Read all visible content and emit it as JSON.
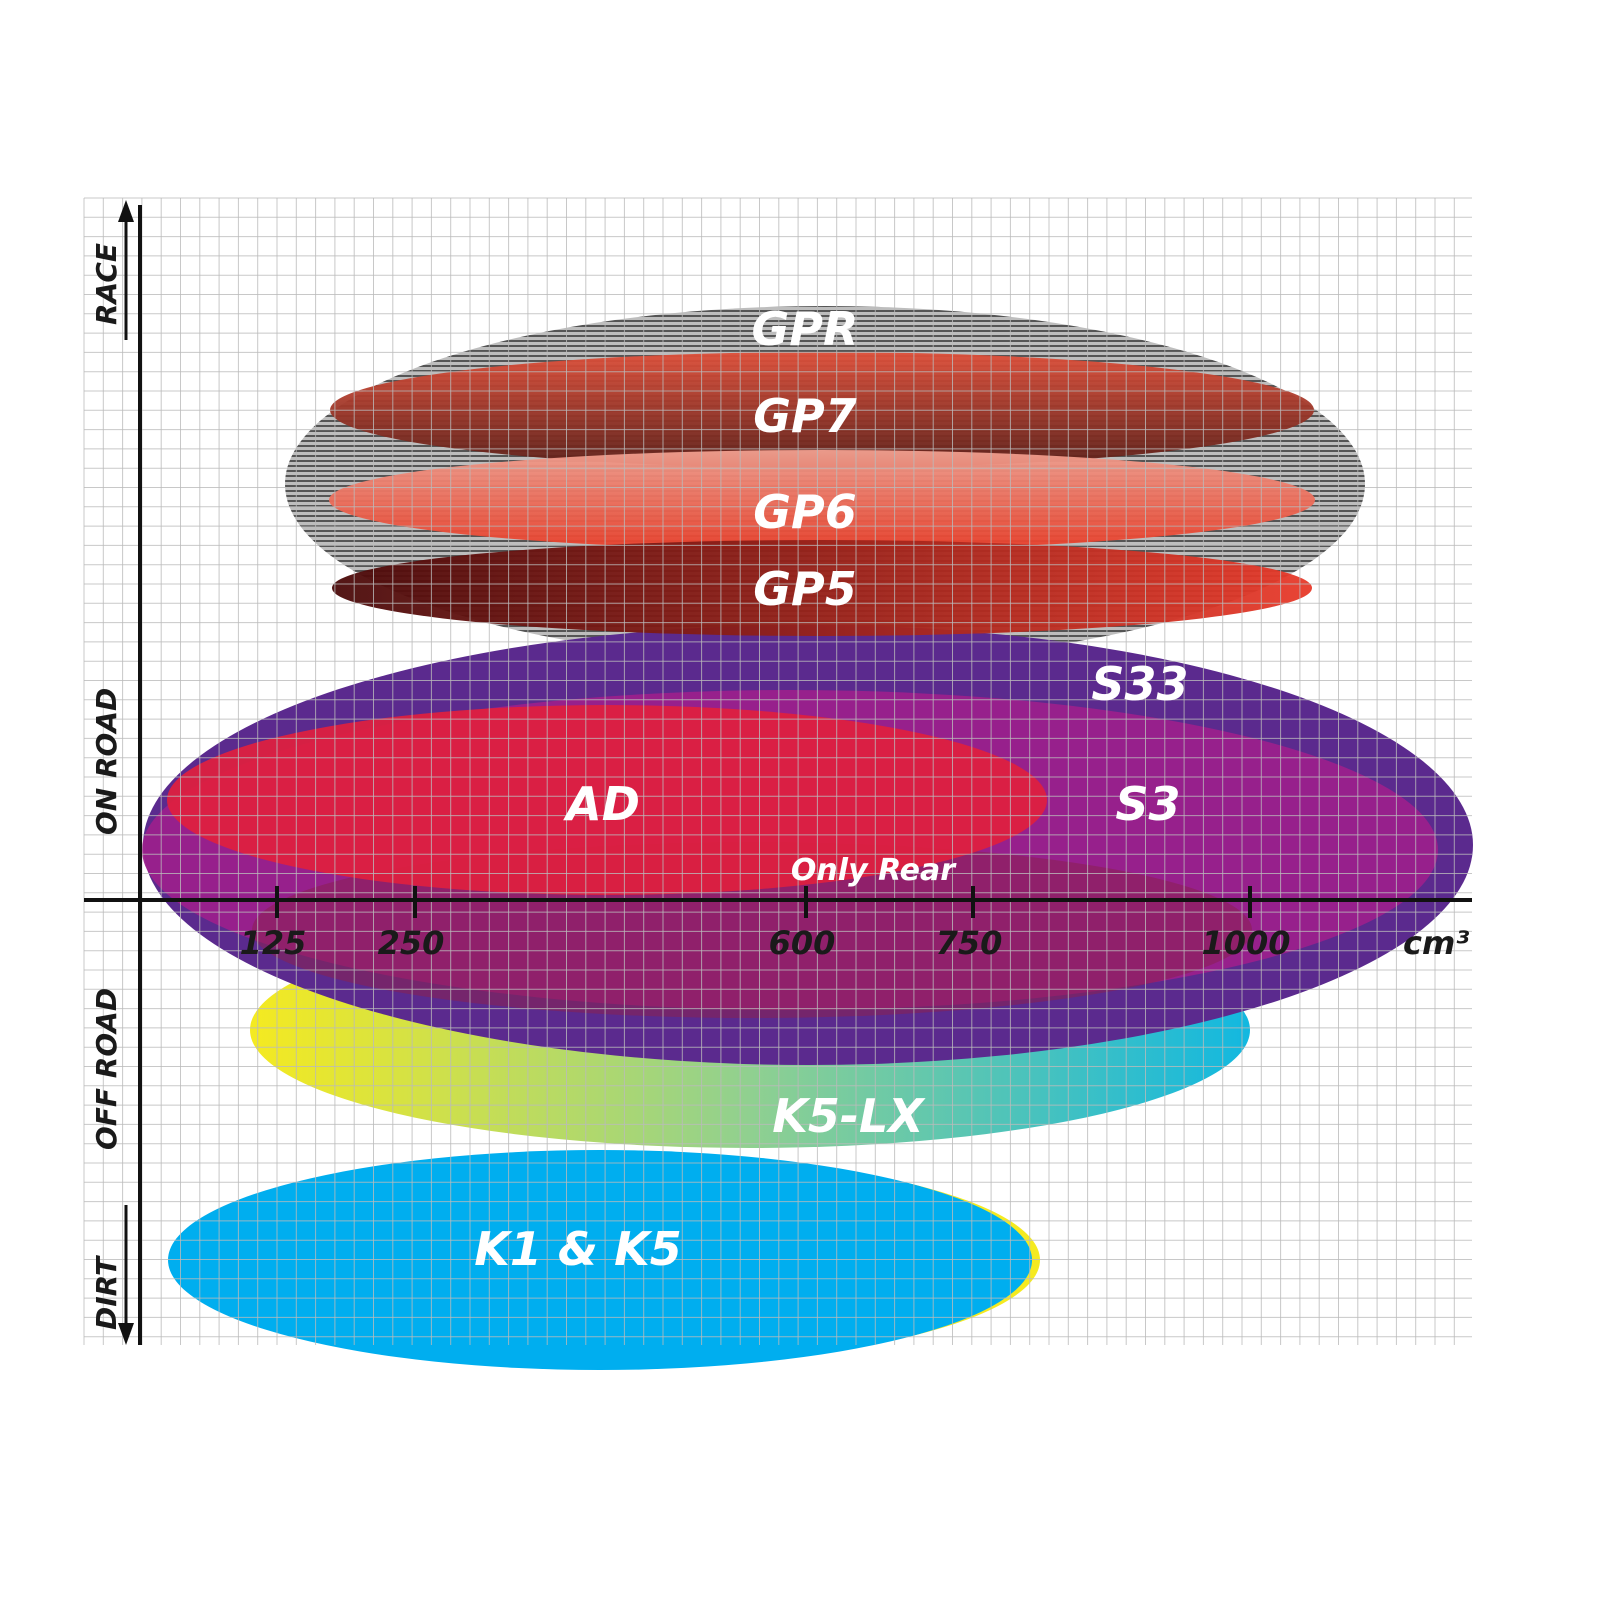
{
  "y_axis": {
    "top_label": "RACE",
    "upper_label": "ON ROAD",
    "lower_label": "OFF ROAD",
    "bottom_label": "DIRT"
  },
  "x_axis": {
    "ticks": [
      "125",
      "250",
      "600",
      "750",
      "1000"
    ],
    "unit": "cm³"
  },
  "products": [
    {
      "name": "GPR",
      "colors": [
        "#9a9a9a",
        "#c8c8c8"
      ]
    },
    {
      "name": "GP7",
      "colors": [
        "#e0503a",
        "#5a1e18"
      ]
    },
    {
      "name": "GP6",
      "colors": [
        "#f0a090",
        "#e83d28"
      ]
    },
    {
      "name": "GP5",
      "colors": [
        "#4a0a0a",
        "#e83a2a"
      ]
    },
    {
      "name": "S33",
      "colors": [
        "#5b2a8e"
      ]
    },
    {
      "name": "S3",
      "colors": [
        "#9c1f8c"
      ]
    },
    {
      "name": "AD",
      "colors": [
        "#dd2040"
      ]
    },
    {
      "name": "Only Rear",
      "colors": [
        "#8a2050"
      ]
    },
    {
      "name": "K5-LX",
      "colors": [
        "#f5ea20",
        "#12b8e0"
      ]
    },
    {
      "name": "K1 & K5",
      "colors": [
        "#00aeef",
        "#f5ea20"
      ]
    }
  ]
}
